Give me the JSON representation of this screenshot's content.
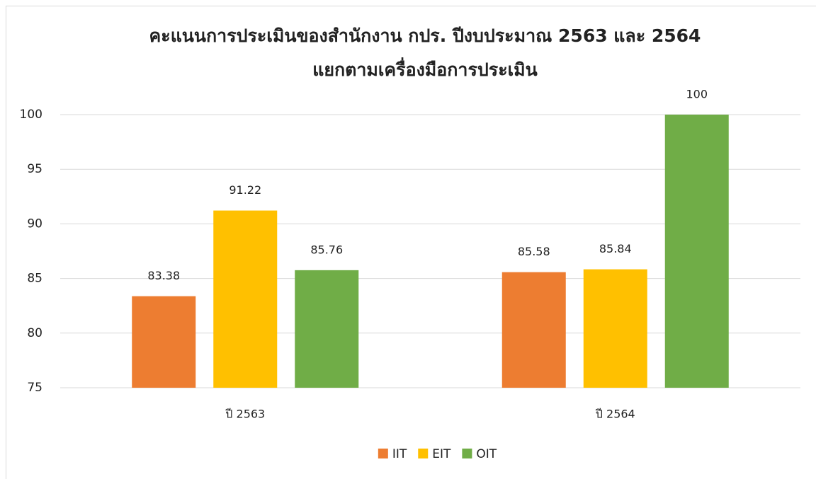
{
  "chart_data": {
    "type": "bar",
    "title": [
      "คะแนนการประเมินของสำนักงาน กปร. ปีงบประมาณ 2563 และ 2564",
      "แยกตามเครื่องมือการประเมิน"
    ],
    "categories": [
      "ปี 2563",
      "ปี 2564"
    ],
    "series": [
      {
        "name": "IIT",
        "color": "#ed7d31",
        "values": [
          83.38,
          85.58
        ]
      },
      {
        "name": "EIT",
        "color": "#ffc000",
        "values": [
          91.22,
          85.84
        ]
      },
      {
        "name": "OIT",
        "color": "#70ad47",
        "values": [
          85.76,
          100
        ]
      }
    ],
    "ylim": [
      75,
      100
    ],
    "yticks": [
      75,
      80,
      85,
      90,
      95,
      100
    ],
    "grid": true,
    "legend": "bottom"
  }
}
